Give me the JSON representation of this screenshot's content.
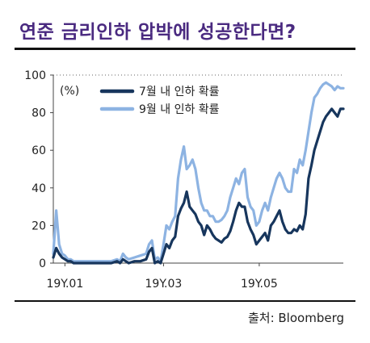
{
  "header": {
    "title": "연준 금리인하 압박에 성공한다면?"
  },
  "footer": {
    "source": "출처: Bloomberg"
  },
  "chart_data": {
    "type": "line",
    "title": "연준 금리인하 압박에 성공한다면?",
    "unit_label": "(%)",
    "xlabel": "",
    "ylabel": "",
    "ylim": [
      0,
      100
    ],
    "yticks": [
      0,
      20,
      40,
      60,
      80,
      100
    ],
    "xlim": [
      0,
      100
    ],
    "xticks": [
      {
        "label": "19Y.01",
        "x": 4
      },
      {
        "label": "19Y.03",
        "x": 38
      },
      {
        "label": "19Y.05",
        "x": 71
      }
    ],
    "grid": false,
    "legend_position": "top-left",
    "colors": {
      "july": "#17365d",
      "sept": "#8db3e2",
      "title": "#4a2a80"
    },
    "series": [
      {
        "name": "7월 내 인하 확률",
        "color": "#17365d",
        "x": [
          0,
          1,
          2,
          3,
          4,
          5,
          6,
          7,
          8,
          9,
          10,
          12,
          14,
          16,
          18,
          20,
          22,
          23,
          24,
          25,
          26,
          28,
          30,
          32,
          33,
          34,
          35,
          36,
          37,
          38,
          39,
          40,
          41,
          42,
          43,
          44,
          45,
          46,
          47,
          48,
          49,
          50,
          51,
          52,
          53,
          54,
          55,
          56,
          57,
          58,
          59,
          60,
          61,
          62,
          63,
          64,
          65,
          66,
          67,
          68,
          69,
          70,
          71,
          72,
          73,
          74,
          75,
          76,
          77,
          78,
          79,
          80,
          81,
          82,
          83,
          84,
          85,
          86,
          87,
          88,
          89,
          90,
          91,
          92,
          93,
          94,
          95,
          96,
          97,
          98,
          99,
          100
        ],
        "values": [
          3,
          8,
          5,
          3,
          2,
          1,
          1,
          0,
          0,
          0,
          0,
          0,
          0,
          0,
          0,
          0,
          1,
          0,
          2,
          1,
          0,
          1,
          1,
          2,
          6,
          8,
          0,
          1,
          0,
          5,
          10,
          8,
          12,
          14,
          25,
          29,
          32,
          38,
          30,
          28,
          26,
          22,
          20,
          15,
          20,
          18,
          15,
          13,
          12,
          11,
          13,
          14,
          17,
          22,
          28,
          32,
          30,
          30,
          22,
          18,
          15,
          10,
          12,
          14,
          16,
          12,
          20,
          22,
          25,
          28,
          22,
          18,
          16,
          16,
          18,
          17,
          20,
          18,
          26,
          45,
          52,
          60,
          65,
          70,
          75,
          78,
          80,
          82,
          80,
          78,
          82,
          82
        ]
      },
      {
        "name": "9월 내 인하 확률",
        "color": "#8db3e2",
        "x": [
          0,
          1,
          2,
          3,
          4,
          5,
          6,
          7,
          8,
          9,
          10,
          12,
          14,
          16,
          18,
          20,
          22,
          23,
          24,
          25,
          26,
          28,
          30,
          32,
          33,
          34,
          35,
          36,
          37,
          38,
          39,
          40,
          41,
          42,
          43,
          44,
          45,
          46,
          47,
          48,
          49,
          50,
          51,
          52,
          53,
          54,
          55,
          56,
          57,
          58,
          59,
          60,
          61,
          62,
          63,
          64,
          65,
          66,
          67,
          68,
          69,
          70,
          71,
          72,
          73,
          74,
          75,
          76,
          77,
          78,
          79,
          80,
          81,
          82,
          83,
          84,
          85,
          86,
          87,
          88,
          89,
          90,
          91,
          92,
          93,
          94,
          95,
          96,
          97,
          98,
          99,
          100
        ],
        "values": [
          5,
          28,
          10,
          5,
          4,
          2,
          2,
          1,
          1,
          1,
          1,
          1,
          1,
          1,
          1,
          1,
          2,
          1,
          5,
          3,
          2,
          3,
          4,
          5,
          10,
          12,
          2,
          3,
          1,
          10,
          20,
          18,
          22,
          25,
          45,
          55,
          62,
          50,
          52,
          55,
          50,
          40,
          32,
          28,
          28,
          25,
          25,
          22,
          22,
          23,
          25,
          28,
          35,
          40,
          45,
          42,
          48,
          50,
          35,
          30,
          28,
          20,
          22,
          28,
          32,
          28,
          35,
          40,
          45,
          48,
          45,
          40,
          38,
          38,
          50,
          48,
          55,
          52,
          60,
          70,
          80,
          88,
          90,
          93,
          95,
          96,
          95,
          94,
          92,
          94,
          93,
          93
        ]
      }
    ]
  }
}
